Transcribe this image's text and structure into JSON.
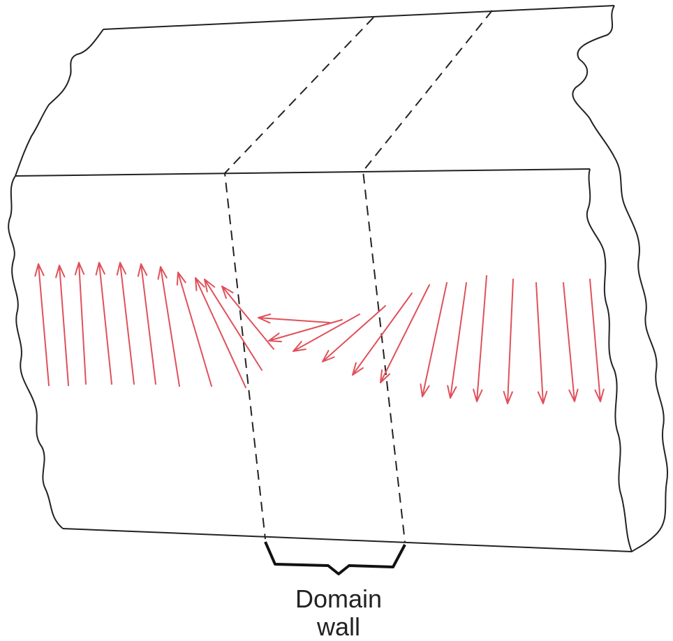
{
  "caption": [
    "Domain",
    "wall"
  ]
}
